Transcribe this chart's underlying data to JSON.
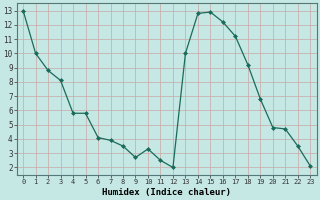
{
  "xlabel": "Humidex (Indice chaleur)",
  "x": [
    0,
    1,
    2,
    3,
    4,
    5,
    6,
    7,
    8,
    9,
    10,
    11,
    12,
    13,
    14,
    15,
    16,
    17,
    18,
    19,
    20,
    21,
    22,
    23
  ],
  "y": [
    13.0,
    10.0,
    8.8,
    8.1,
    5.8,
    5.8,
    4.1,
    3.9,
    3.5,
    2.7,
    3.3,
    2.5,
    2.0,
    10.0,
    12.8,
    12.9,
    12.2,
    11.2,
    9.2,
    6.8,
    4.8,
    4.7,
    3.5,
    2.1
  ],
  "line_color": "#1a6b5a",
  "marker": "D",
  "marker_size": 2,
  "bg_color": "#c5e8e5",
  "grid_color_major": "#c8a8a8",
  "xlim": [
    -0.5,
    23.5
  ],
  "ylim": [
    1.5,
    13.5
  ],
  "xticks": [
    0,
    1,
    2,
    3,
    4,
    5,
    6,
    7,
    8,
    9,
    10,
    11,
    12,
    13,
    14,
    15,
    16,
    17,
    18,
    19,
    20,
    21,
    22,
    23
  ],
  "yticks": [
    2,
    3,
    4,
    5,
    6,
    7,
    8,
    9,
    10,
    11,
    12,
    13
  ],
  "xtick_labels": [
    "0",
    "1",
    "2",
    "3",
    "4",
    "5",
    "6",
    "7",
    "8",
    "9",
    "10",
    "11",
    "12",
    "13",
    "14",
    "15",
    "16",
    "17",
    "18",
    "19",
    "20",
    "21",
    "22",
    "23"
  ],
  "ytick_labels": [
    "2",
    "3",
    "4",
    "5",
    "6",
    "7",
    "8",
    "9",
    "10",
    "11",
    "12",
    "13"
  ]
}
